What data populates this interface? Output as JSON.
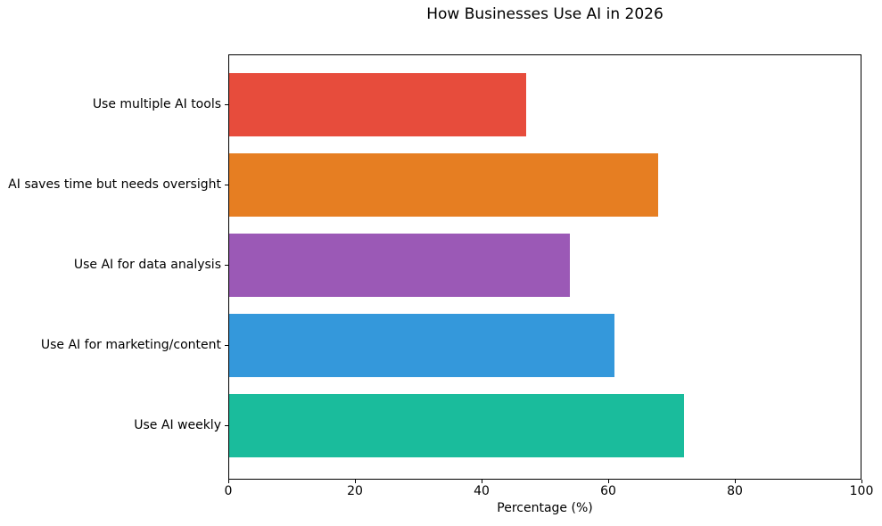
{
  "chart_data": {
    "type": "bar",
    "orientation": "horizontal",
    "title": "How Businesses Use AI in 2026",
    "xlabel": "Percentage (%)",
    "ylabel": "",
    "categories": [
      "Use multiple AI tools",
      "AI saves time but needs oversight",
      "Use AI for data analysis",
      "Use AI for marketing/content",
      "Use AI weekly"
    ],
    "values": [
      47,
      68,
      54,
      61,
      72
    ],
    "colors": [
      "#e74c3c",
      "#e67e22",
      "#9b59b6",
      "#3498db",
      "#1abc9c"
    ],
    "xlim": [
      0,
      100
    ],
    "xticks": [
      0,
      20,
      40,
      60,
      80,
      100
    ],
    "grid": false,
    "legend": "none",
    "background_color": "#ffffff",
    "axis_color": "#000000"
  }
}
